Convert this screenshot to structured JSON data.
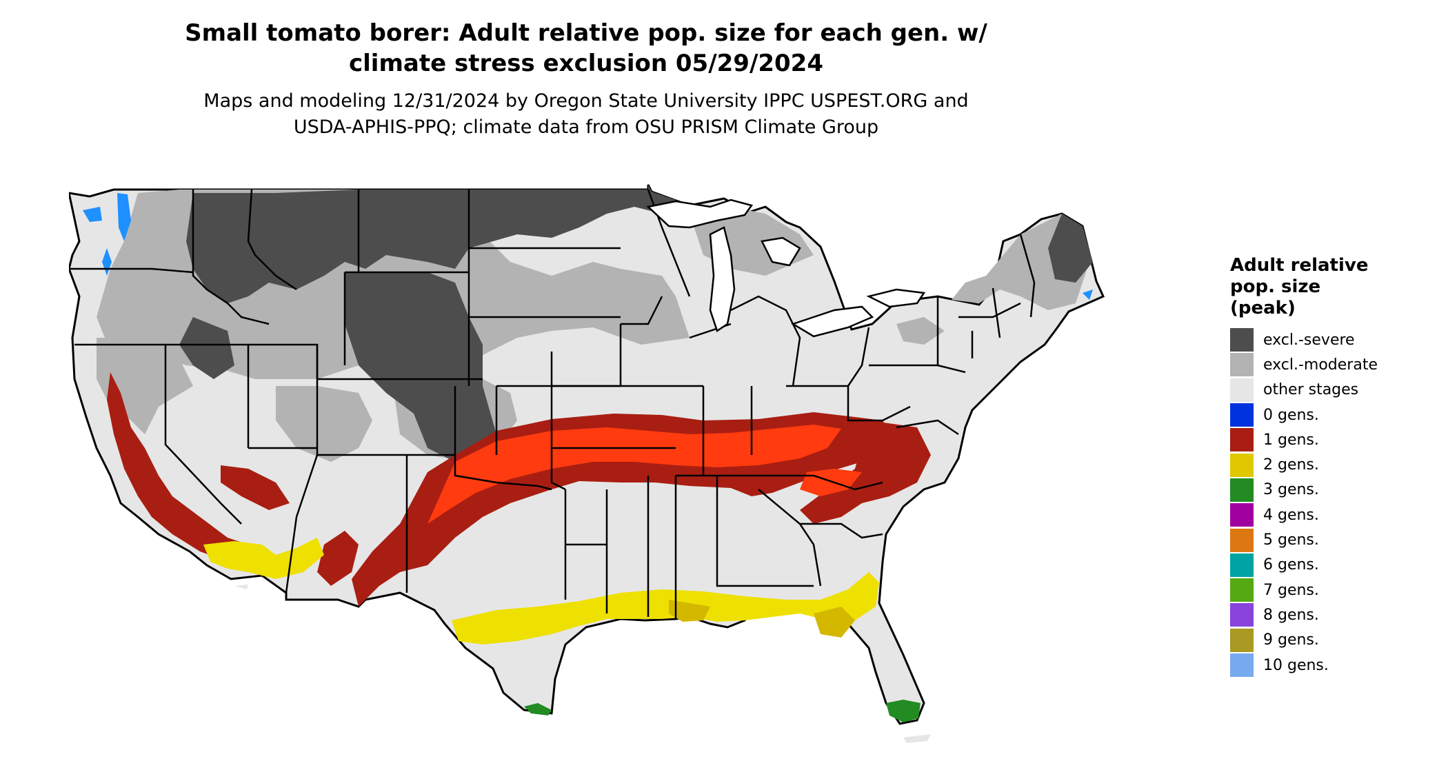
{
  "title_line1": "Small tomato borer: Adult relative pop. size for each gen. w/",
  "title_line2": "climate stress exclusion 05/29/2024",
  "subtitle_line1": "Maps and modeling 12/31/2024 by Oregon State University IPPC USPEST.ORG and",
  "subtitle_line2": "USDA-APHIS-PPQ; climate data from OSU PRISM Climate Group",
  "legend": {
    "title_line1": "Adult relative",
    "title_line2": "pop. size",
    "title_line3": "(peak)",
    "items": [
      {
        "label": "excl.-severe",
        "color": "#4d4d4d"
      },
      {
        "label": "excl.-moderate",
        "color": "#b3b3b3"
      },
      {
        "label": "other stages",
        "color": "#e6e6e6"
      },
      {
        "label": "0 gens.",
        "color": "#0033dd"
      },
      {
        "label": "1 gens.",
        "color": "#a91e12"
      },
      {
        "label": "2 gens.",
        "color": "#e0c800"
      },
      {
        "label": "3 gens.",
        "color": "#228b22"
      },
      {
        "label": "4 gens.",
        "color": "#a000a0"
      },
      {
        "label": "5 gens.",
        "color": "#dd7711"
      },
      {
        "label": "6 gens.",
        "color": "#00a3a3"
      },
      {
        "label": "7 gens.",
        "color": "#55aa11"
      },
      {
        "label": "8 gens.",
        "color": "#8844dd"
      },
      {
        "label": "9 gens.",
        "color": "#aa9922"
      },
      {
        "label": "10 gens.",
        "color": "#77aaee"
      }
    ]
  }
}
